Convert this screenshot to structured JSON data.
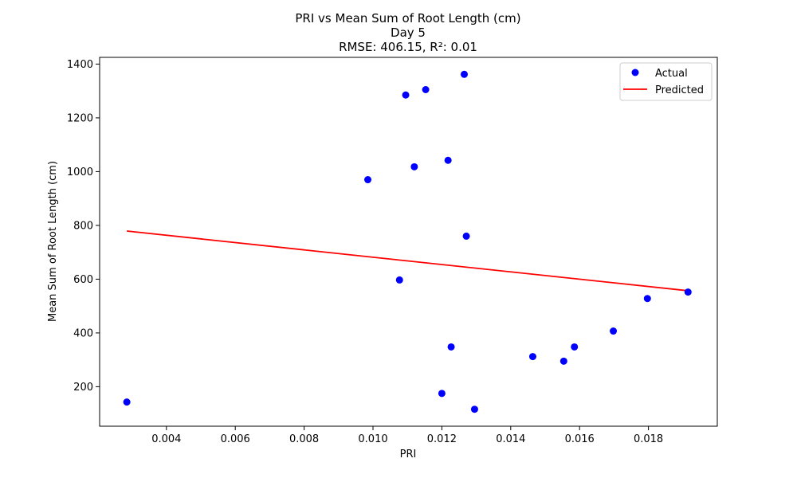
{
  "chart_data": {
    "type": "scatter",
    "title_lines": [
      "PRI vs Mean Sum of Root Length (cm)",
      "Day 5",
      "RMSE: 406.15, R²: 0.01"
    ],
    "xlabel": "PRI",
    "ylabel": "Mean Sum of Root Length (cm)",
    "xlim": [
      0.00206,
      0.02
    ],
    "ylim": [
      53,
      1425
    ],
    "x_ticks": [
      0.004,
      0.006,
      0.008,
      0.01,
      0.012,
      0.014,
      0.016,
      0.018
    ],
    "x_tick_labels": [
      "0.004",
      "0.006",
      "0.008",
      "0.010",
      "0.012",
      "0.014",
      "0.016",
      "0.018"
    ],
    "y_ticks": [
      200,
      400,
      600,
      800,
      1000,
      1200,
      1400
    ],
    "y_tick_labels": [
      "200",
      "400",
      "600",
      "800",
      "1000",
      "1200",
      "1400"
    ],
    "grid": false,
    "legend_position": "top-right",
    "series": [
      {
        "name": "Actual",
        "kind": "scatter",
        "color": "#0000ff",
        "points": [
          {
            "x": 0.00285,
            "y": 143
          },
          {
            "x": 0.00985,
            "y": 970
          },
          {
            "x": 0.01077,
            "y": 597
          },
          {
            "x": 0.01095,
            "y": 1285
          },
          {
            "x": 0.0112,
            "y": 1018
          },
          {
            "x": 0.01153,
            "y": 1305
          },
          {
            "x": 0.012,
            "y": 175
          },
          {
            "x": 0.01218,
            "y": 1042
          },
          {
            "x": 0.01227,
            "y": 348
          },
          {
            "x": 0.01265,
            "y": 1362
          },
          {
            "x": 0.01271,
            "y": 760
          },
          {
            "x": 0.01295,
            "y": 116
          },
          {
            "x": 0.01464,
            "y": 312
          },
          {
            "x": 0.01554,
            "y": 295
          },
          {
            "x": 0.01585,
            "y": 348
          },
          {
            "x": 0.01698,
            "y": 407
          },
          {
            "x": 0.01797,
            "y": 528
          },
          {
            "x": 0.01915,
            "y": 552
          }
        ]
      },
      {
        "name": "Predicted",
        "kind": "line",
        "color": "#ff0000",
        "points": [
          {
            "x": 0.00285,
            "y": 779
          },
          {
            "x": 0.01915,
            "y": 557
          }
        ]
      }
    ]
  }
}
